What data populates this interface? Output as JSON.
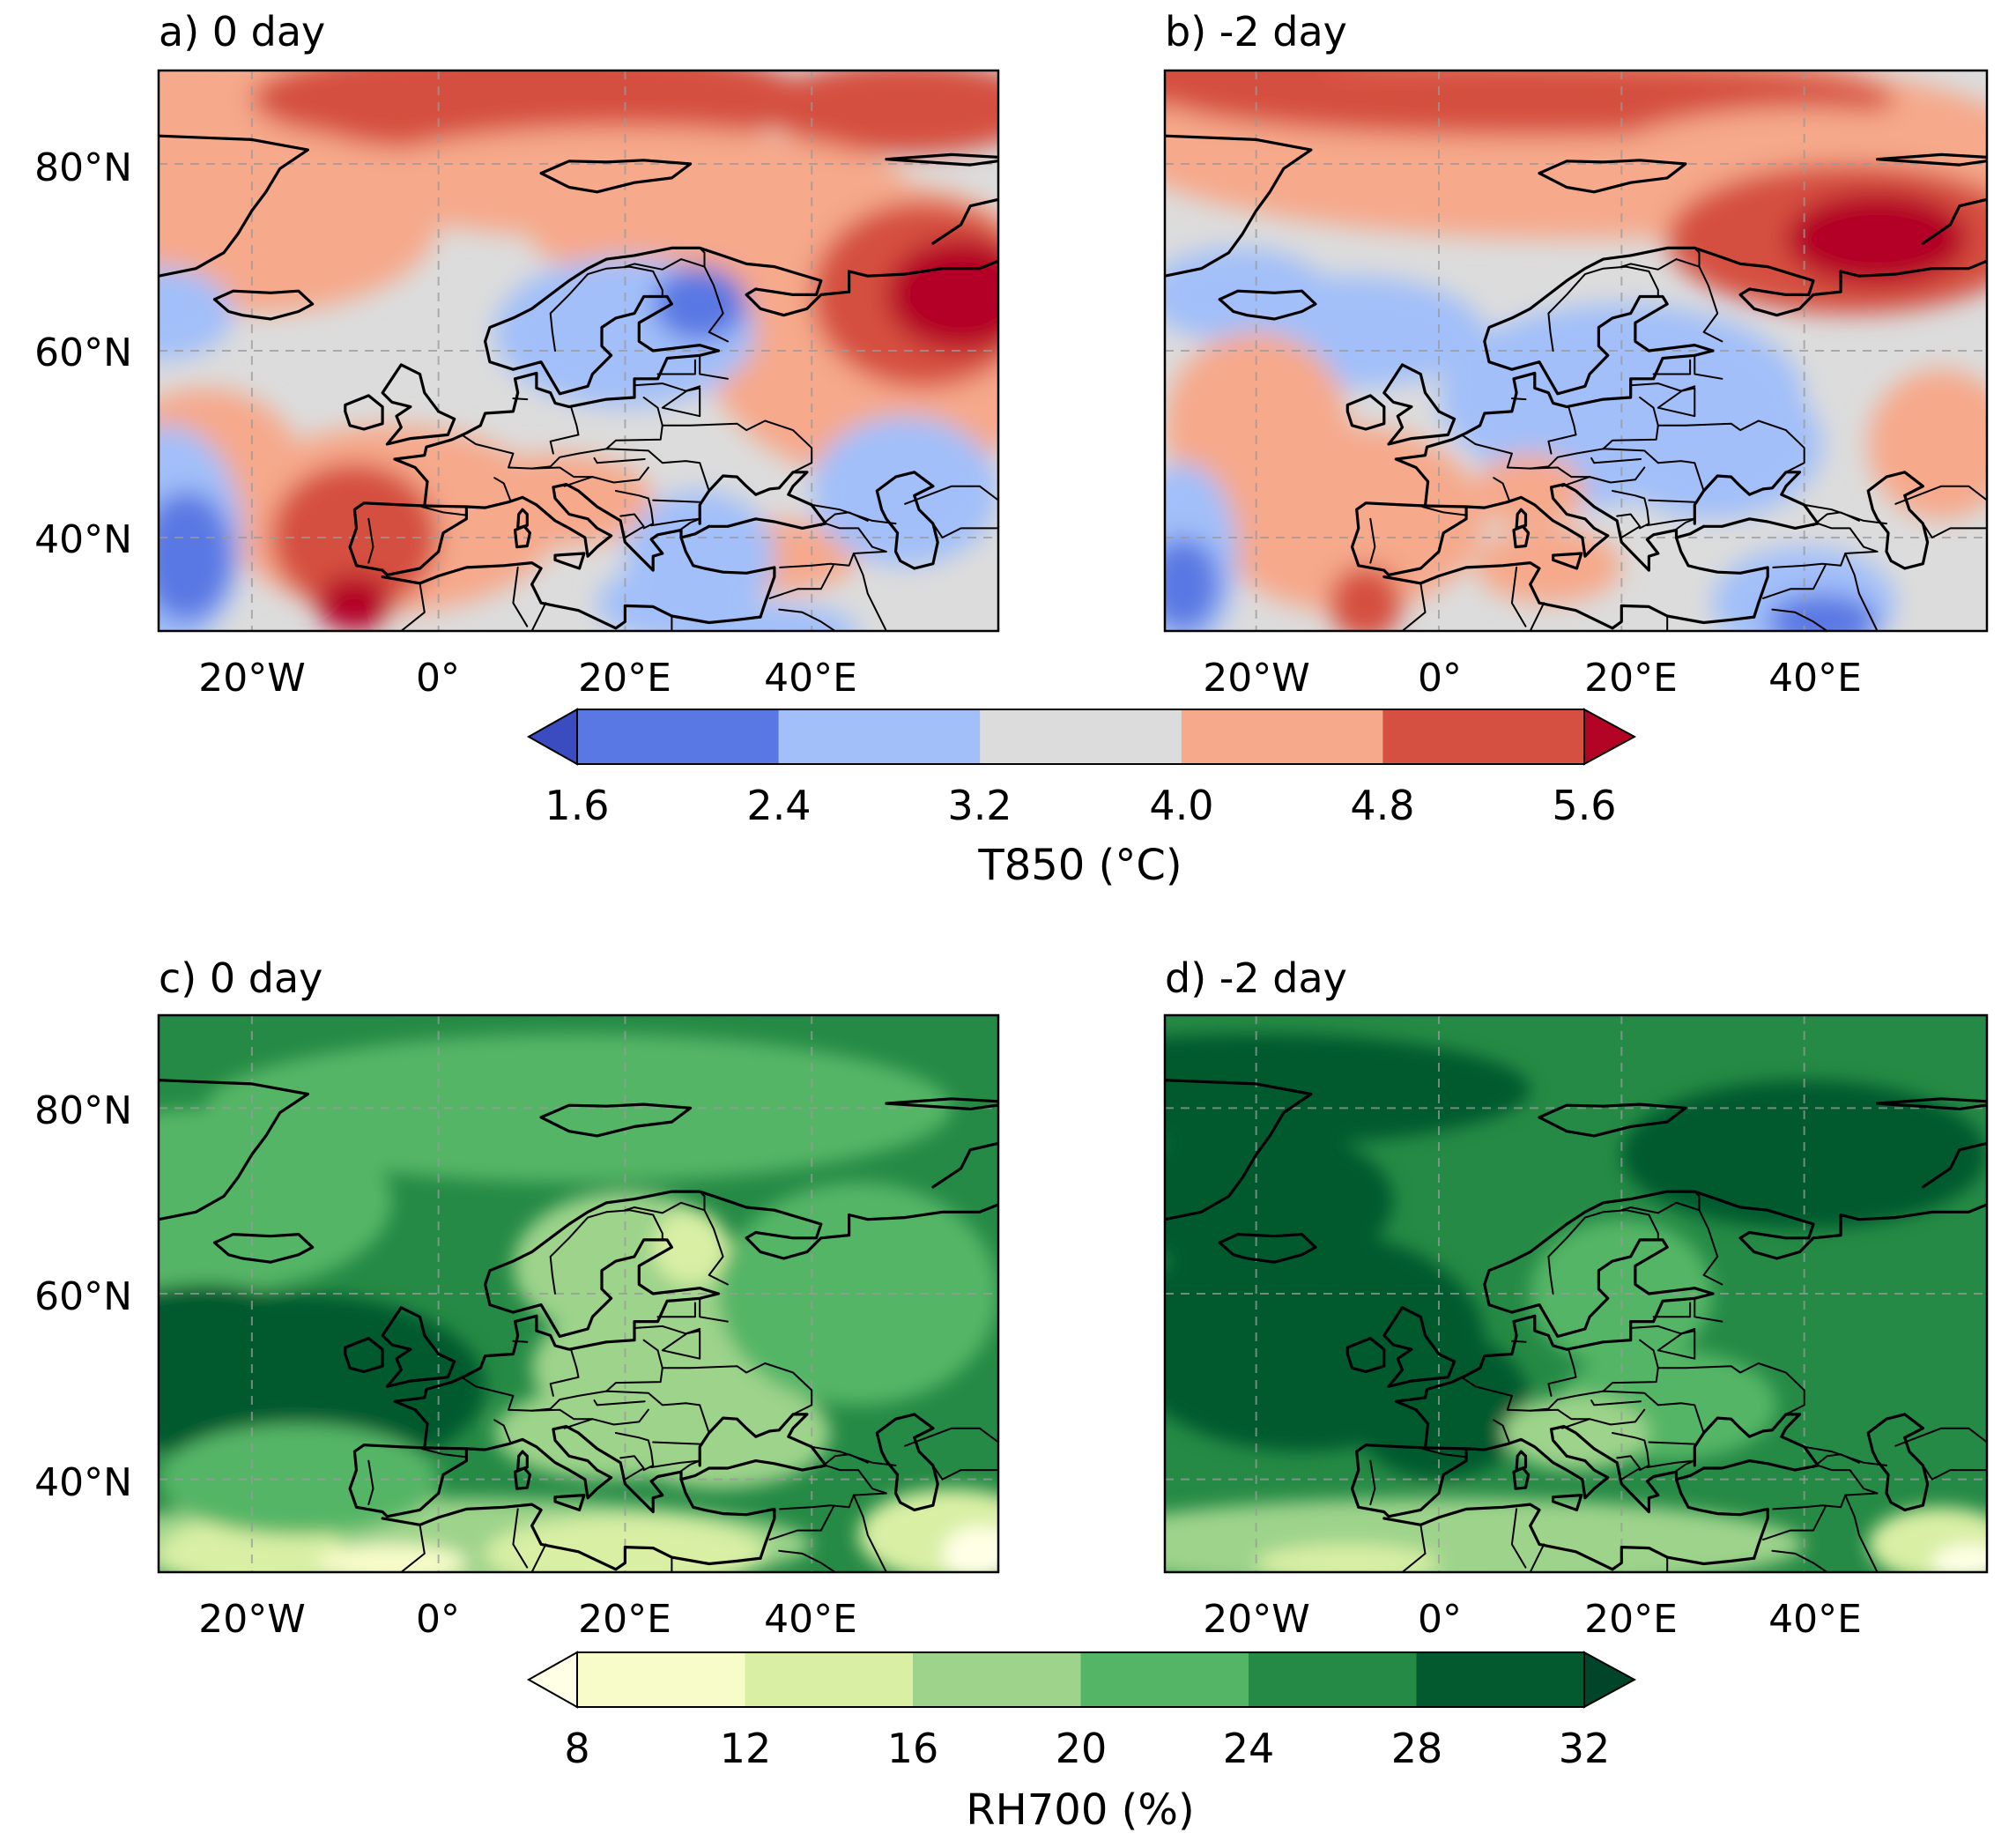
{
  "panels": [
    {
      "id": "a",
      "title": "a) 0 day",
      "field": "t850",
      "stage": 0
    },
    {
      "id": "b",
      "title": "b) -2 day",
      "field": "t850",
      "stage": 1
    },
    {
      "id": "c",
      "title": "c) 0 day",
      "field": "rh700",
      "stage": 0
    },
    {
      "id": "d",
      "title": "d) -2 day",
      "field": "rh700",
      "stage": 1
    }
  ],
  "axes": {
    "lon_ticks": [
      "20°W",
      "0°",
      "20°E",
      "40°E"
    ],
    "lat_ticks": [
      "80°N",
      "60°N",
      "40°N"
    ],
    "lon_range": [
      -30,
      60
    ],
    "lat_range": [
      30,
      90
    ],
    "gridlines": true
  },
  "colorbars": {
    "t850": {
      "label": "T850 (°C)",
      "ticks": [
        "1.6",
        "2.4",
        "3.2",
        "4.0",
        "4.8",
        "5.6"
      ],
      "levels": [
        1.6,
        2.4,
        3.2,
        4.0,
        4.8,
        5.6
      ],
      "colors": [
        "#5a78e3",
        "#a2bff9",
        "#dcdcdc",
        "#f6a98b",
        "#d55040"
      ],
      "extend_low_color": "#3b4cc0",
      "extend_high_color": "#b40426"
    },
    "rh700": {
      "label": "RH700 (%)",
      "ticks": [
        "8",
        "12",
        "16",
        "20",
        "24",
        "28",
        "32"
      ],
      "levels": [
        8,
        12,
        16,
        20,
        24,
        28,
        32
      ],
      "colors": [
        "#f8fcc9",
        "#d8efa4",
        "#9dd38b",
        "#55b566",
        "#258a45",
        "#035a2e"
      ],
      "extend_low_color": "#ffffe5",
      "extend_high_color": "#004529"
    }
  }
}
